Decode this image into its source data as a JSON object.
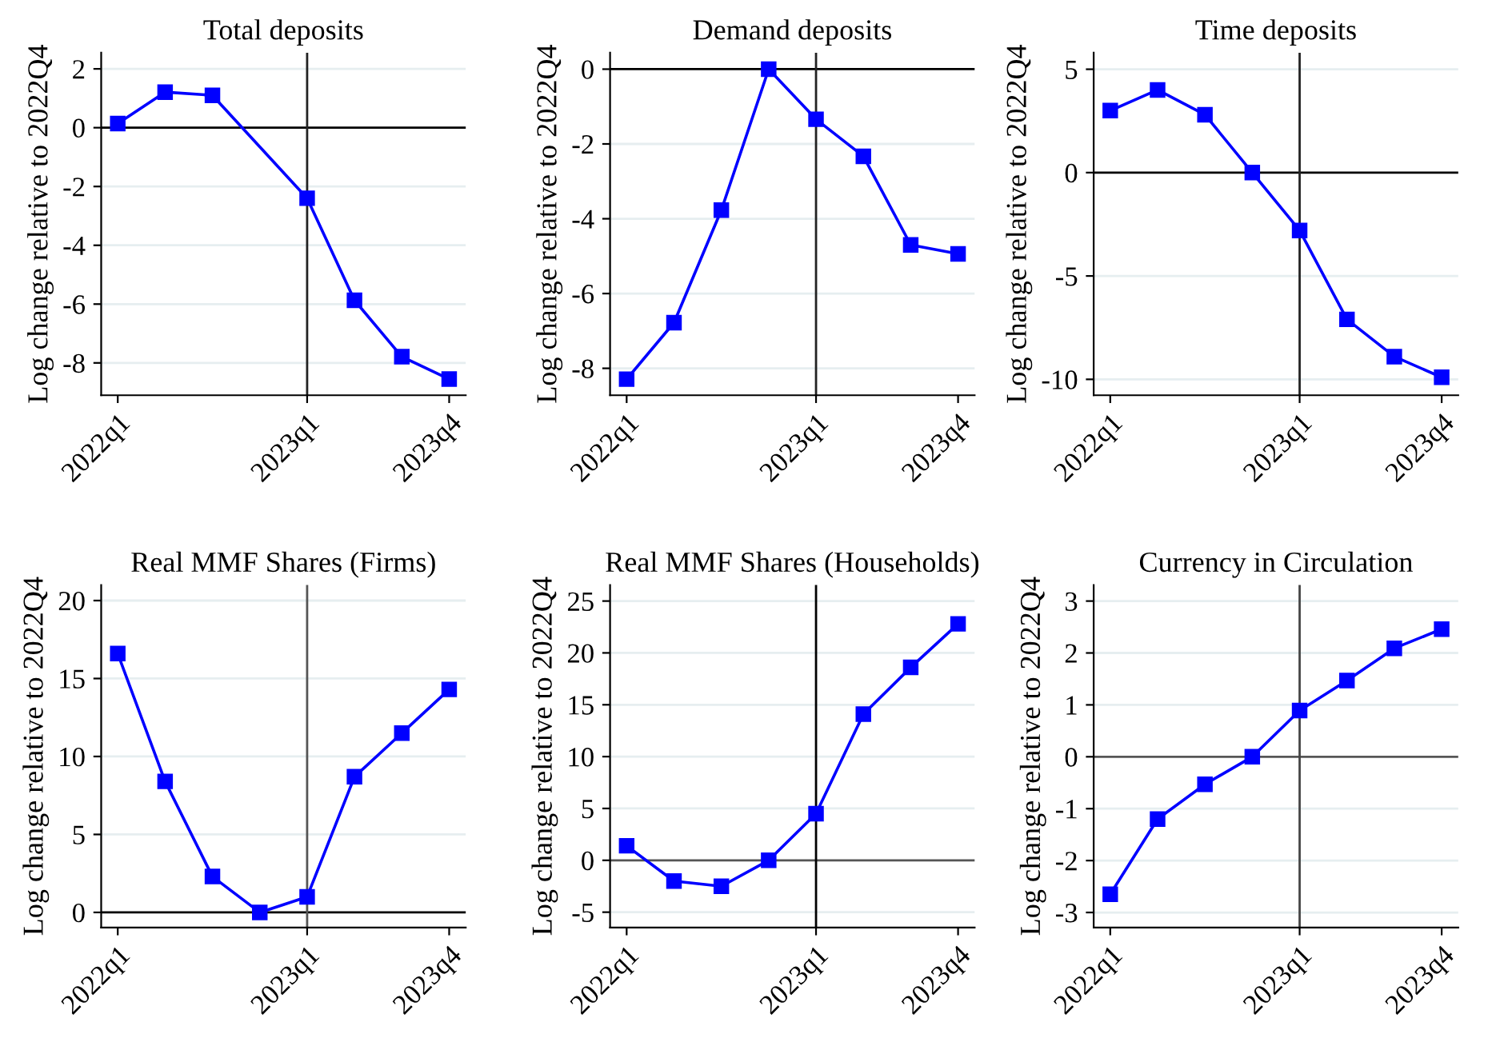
{
  "chart_data": [
    {
      "type": "line",
      "title": "Total deposits",
      "ylabel": "Log change relative to 2022Q4",
      "categories": [
        "2022q1",
        null,
        null,
        null,
        "2023q1",
        null,
        null,
        "2023q4"
      ],
      "ylim": [
        -9.1,
        2.55
      ],
      "yticks": [
        -8,
        -6,
        -4,
        -2,
        0,
        2
      ],
      "series": [
        {
          "color": "#0000ff",
          "values": [
            0.14,
            1.21,
            1.1,
            null,
            -2.4,
            -5.87,
            -7.79,
            -8.55
          ]
        }
      ],
      "marker": "square",
      "grid": "y",
      "ref_lines": [
        {
          "axis": "y",
          "value": 0,
          "color": "#000000"
        },
        {
          "axis": "x",
          "value": "2023q1",
          "color": "#222222"
        }
      ]
    },
    {
      "type": "line",
      "title": "Demand deposits",
      "ylabel": "Log change relative to 2022Q4",
      "categories": [
        "2022q1",
        null,
        null,
        null,
        "2023q1",
        null,
        null,
        "2023q4"
      ],
      "ylim": [
        -8.72,
        0.44
      ],
      "yticks": [
        -8,
        -6,
        -4,
        -2,
        0
      ],
      "series": [
        {
          "color": "#0000ff",
          "values": [
            -8.29,
            -6.78,
            -3.77,
            0,
            -1.34,
            -2.33,
            -4.7,
            -4.94
          ]
        }
      ],
      "marker": "square",
      "grid": "y",
      "ref_lines": [
        {
          "axis": "y",
          "value": 0,
          "color": "#000000"
        },
        {
          "axis": "x",
          "value": "2023q1",
          "color": "#222222"
        }
      ]
    },
    {
      "type": "line",
      "title": "Time deposits",
      "ylabel": "Log change relative to 2022Q4",
      "categories": [
        "2022q1",
        null,
        null,
        null,
        "2023q1",
        null,
        null,
        "2023q4"
      ],
      "ylim": [
        -10.77,
        5.8
      ],
      "yticks": [
        -10,
        -5,
        0,
        5
      ],
      "series": [
        {
          "color": "#0000ff",
          "values": [
            3.0,
            4.0,
            2.8,
            0,
            -2.8,
            -7.1,
            -8.9,
            -9.9
          ]
        }
      ],
      "marker": "square",
      "grid": "y",
      "ref_lines": [
        {
          "axis": "y",
          "value": 0,
          "color": "#000000"
        },
        {
          "axis": "x",
          "value": "2023q1",
          "color": "#222222"
        }
      ]
    },
    {
      "type": "line",
      "title": "Real MMF Shares (Firms)",
      "ylabel": "Log change relative to 2022Q4",
      "categories": [
        "2022q1",
        null,
        null,
        null,
        "2023q1",
        null,
        null,
        "2023q4"
      ],
      "ylim": [
        -0.97,
        21.0
      ],
      "yticks": [
        0,
        5,
        10,
        15,
        20
      ],
      "series": [
        {
          "color": "#0000ff",
          "values": [
            16.6,
            8.4,
            2.3,
            0,
            1.0,
            8.7,
            11.5,
            14.3
          ]
        }
      ],
      "marker": "square",
      "grid": "y",
      "ref_lines": [
        {
          "axis": "y",
          "value": 0,
          "color": "#000000"
        },
        {
          "axis": "x",
          "value": "2023q1",
          "color": "#555555"
        }
      ]
    },
    {
      "type": "line",
      "title": "Real MMF Shares (Households)",
      "ylabel": "Log change relative to 2022Q4",
      "categories": [
        "2022q1",
        null,
        null,
        null,
        "2023q1",
        null,
        null,
        "2023q4"
      ],
      "ylim": [
        -6.48,
        26.55
      ],
      "yticks": [
        -5,
        0,
        5,
        10,
        15,
        20,
        25
      ],
      "series": [
        {
          "color": "#0000ff",
          "values": [
            1.4,
            -2.0,
            -2.5,
            0,
            4.5,
            14.1,
            18.6,
            22.8
          ]
        }
      ],
      "marker": "square",
      "grid": "y",
      "ref_lines": [
        {
          "axis": "y",
          "value": 0,
          "color": "#555555"
        },
        {
          "axis": "x",
          "value": "2023q1",
          "color": "#000000"
        }
      ]
    },
    {
      "type": "line",
      "title": "Currency in Circulation",
      "ylabel": "Log change relative to 2022Q4",
      "categories": [
        "2022q1",
        null,
        null,
        null,
        "2023q1",
        null,
        null,
        "2023q4"
      ],
      "ylim": [
        -3.29,
        3.31
      ],
      "yticks": [
        -3,
        -2,
        -1,
        0,
        1,
        2,
        3
      ],
      "series": [
        {
          "color": "#0000ff",
          "values": [
            -2.65,
            -1.2,
            -0.53,
            0,
            0.89,
            1.47,
            2.09,
            2.46
          ]
        }
      ],
      "marker": "square",
      "grid": "y",
      "ref_lines": [
        {
          "axis": "y",
          "value": 0,
          "color": "#555555"
        },
        {
          "axis": "x",
          "value": "2023q1",
          "color": "#444444"
        }
      ]
    }
  ]
}
